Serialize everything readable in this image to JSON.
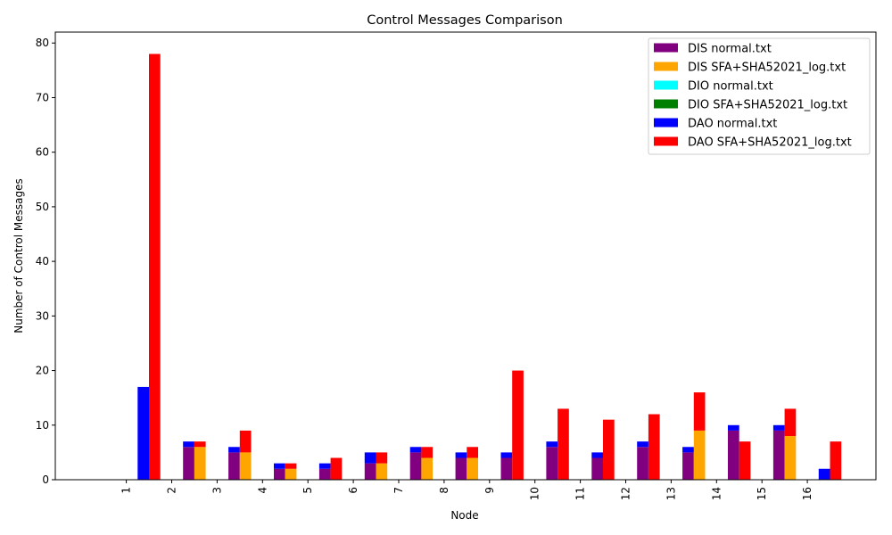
{
  "chart_data": {
    "type": "bar",
    "title": "Control Messages Comparison",
    "xlabel": "Node",
    "ylabel": "Number of Control Messages",
    "ylim": [
      0,
      82
    ],
    "yticks": [
      0,
      10,
      20,
      30,
      40,
      50,
      60,
      70,
      80
    ],
    "categories": [
      "1",
      "2",
      "3",
      "4",
      "5",
      "6",
      "7",
      "8",
      "9",
      "10",
      "11",
      "12",
      "13",
      "14",
      "15",
      "16"
    ],
    "stacked_groups": [
      "normal",
      "SFA+SHA52021_log"
    ],
    "series": [
      {
        "name": "DIS normal.txt",
        "group": "normal",
        "color": "#800080",
        "values": [
          0,
          6,
          5,
          2,
          2,
          3,
          5,
          4,
          4,
          6,
          4,
          6,
          5,
          9,
          9,
          0
        ]
      },
      {
        "name": "DIS SFA+SHA52021_log.txt",
        "group": "SFA+SHA52021_log",
        "color": "#ffa500",
        "values": [
          0,
          6,
          5,
          2,
          0,
          3,
          4,
          4,
          0,
          0,
          0,
          0,
          9,
          0,
          8,
          0
        ]
      },
      {
        "name": "DIO normal.txt",
        "group": "normal",
        "color": "#00ffff",
        "values": [
          0,
          0,
          0,
          0,
          0,
          0,
          0,
          0,
          0,
          0,
          0,
          0,
          0,
          0,
          0,
          0
        ]
      },
      {
        "name": "DIO SFA+SHA52021_log.txt",
        "group": "SFA+SHA52021_log",
        "color": "#008000",
        "values": [
          0,
          0,
          0,
          0,
          0,
          0,
          0,
          0,
          0,
          0,
          0,
          0,
          0,
          0,
          0,
          0
        ]
      },
      {
        "name": "DAO normal.txt",
        "group": "normal",
        "color": "#0000ff",
        "values": [
          17,
          1,
          1,
          1,
          1,
          2,
          1,
          1,
          1,
          1,
          1,
          1,
          1,
          1,
          1,
          2
        ]
      },
      {
        "name": "DAO SFA+SHA52021_log.txt",
        "group": "SFA+SHA52021_log",
        "color": "#ff0000",
        "values": [
          78,
          1,
          4,
          1,
          4,
          2,
          2,
          2,
          20,
          13,
          11,
          12,
          7,
          7,
          5,
          7
        ]
      }
    ],
    "legend_position": "top-right",
    "grid": false
  }
}
